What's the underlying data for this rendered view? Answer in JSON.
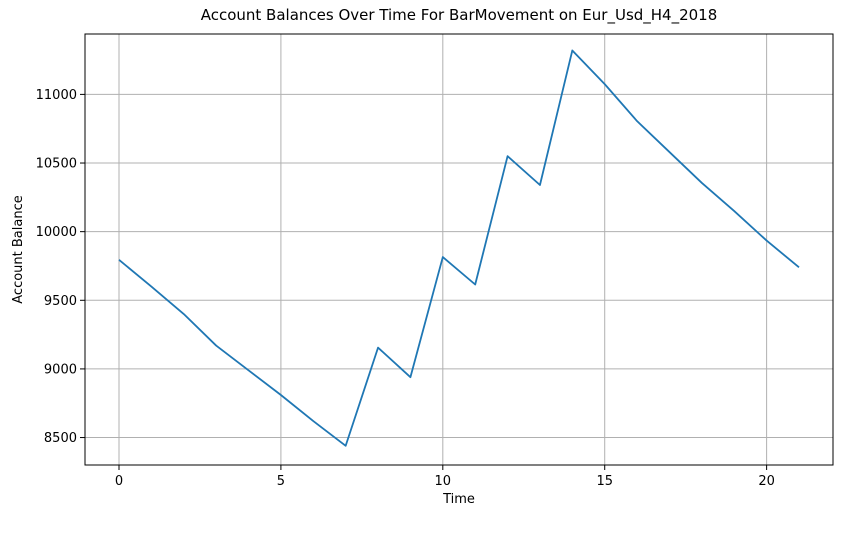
{
  "chart_data": {
    "type": "line",
    "title": "Account Balances Over Time For BarMovement on Eur_Usd_H4_2018",
    "xlabel": "Time",
    "ylabel": "Account Balance",
    "xlim": [
      -1.05,
      22.05
    ],
    "ylim": [
      8300,
      11440
    ],
    "xticks": [
      0,
      5,
      10,
      15,
      20
    ],
    "yticks": [
      8500,
      9000,
      9500,
      10000,
      10500,
      11000
    ],
    "grid": true,
    "series": [
      {
        "color": "#1f77b4",
        "x": [
          0,
          1,
          2,
          3,
          4,
          5,
          6,
          7,
          8,
          9,
          10,
          11,
          12,
          13,
          14,
          15,
          16,
          17,
          18,
          19,
          20,
          21
        ],
        "y": [
          9795,
          9600,
          9400,
          9170,
          8990,
          8810,
          8620,
          8440,
          9155,
          8940,
          9815,
          9615,
          10550,
          10340,
          11320,
          11075,
          10805,
          10580,
          10355,
          10150,
          9935,
          9740
        ]
      }
    ]
  }
}
